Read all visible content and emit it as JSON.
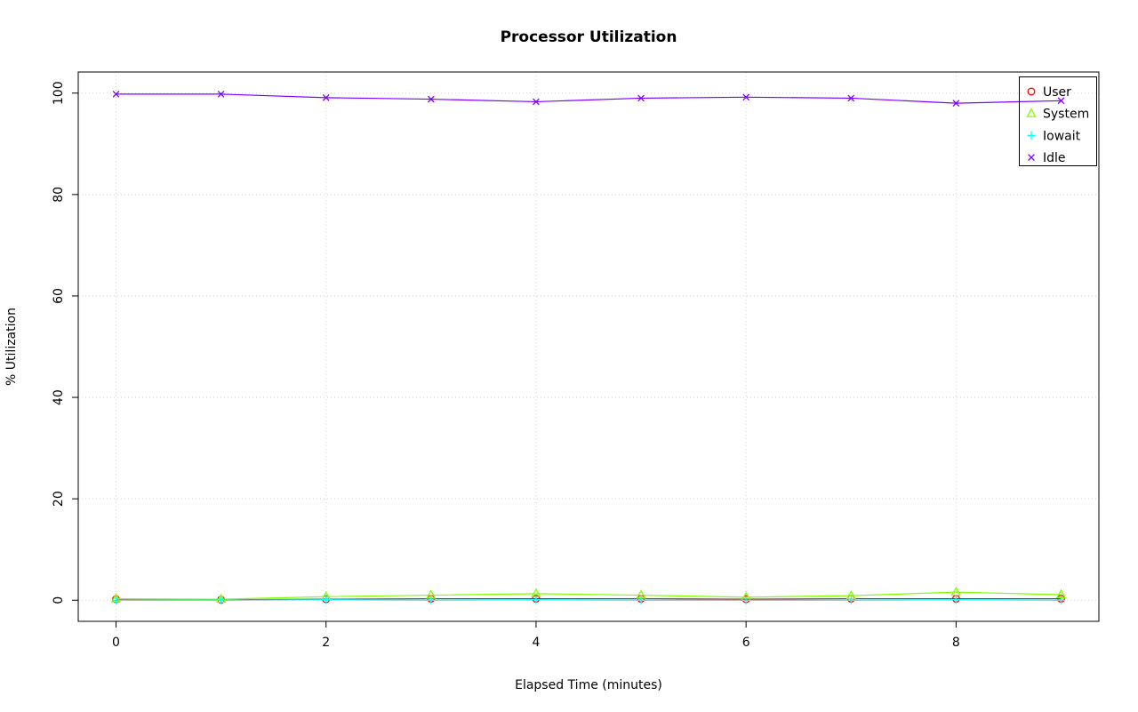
{
  "page": {
    "background": "#ffffff"
  },
  "chart_data": {
    "type": "line",
    "title": "Processor Utilization",
    "xlabel": "Elapsed Time (minutes)",
    "ylabel": "% Utilization",
    "x": [
      0,
      1,
      2,
      3,
      4,
      5,
      6,
      7,
      8,
      9
    ],
    "series": [
      {
        "name": "User",
        "color": "#FF0000",
        "marker": "circle",
        "values": [
          0.2,
          0.1,
          0.2,
          0.3,
          0.3,
          0.3,
          0.2,
          0.3,
          0.3,
          0.3
        ]
      },
      {
        "name": "System",
        "color": "#80FF00",
        "marker": "triangle",
        "values": [
          0.3,
          0.2,
          0.7,
          1.0,
          1.3,
          1.0,
          0.6,
          0.9,
          1.6,
          1.1
        ]
      },
      {
        "name": "Iowait",
        "color": "#00FFFF",
        "marker": "plus",
        "values": [
          0.0,
          0.0,
          0.1,
          0.0,
          0.1,
          0.0,
          0.0,
          0.0,
          0.1,
          0.0
        ]
      },
      {
        "name": "Idle",
        "color": "#8000FF",
        "marker": "x",
        "values": [
          99.8,
          99.8,
          99.1,
          98.8,
          98.3,
          99.0,
          99.2,
          99.0,
          98.0,
          98.5
        ]
      }
    ],
    "xticks": [
      0,
      2,
      4,
      6,
      8
    ],
    "yticks": [
      0,
      20,
      40,
      60,
      80,
      100
    ],
    "xlim": [
      -0.36,
      9.36
    ],
    "ylim": [
      -4.16,
      104.16
    ],
    "grid": true,
    "grid_color": "#d3d3d3",
    "axis_color": "#000000",
    "legend_position": "top-right",
    "legend_entries": [
      "User",
      "System",
      "Iowait",
      "Idle"
    ]
  }
}
